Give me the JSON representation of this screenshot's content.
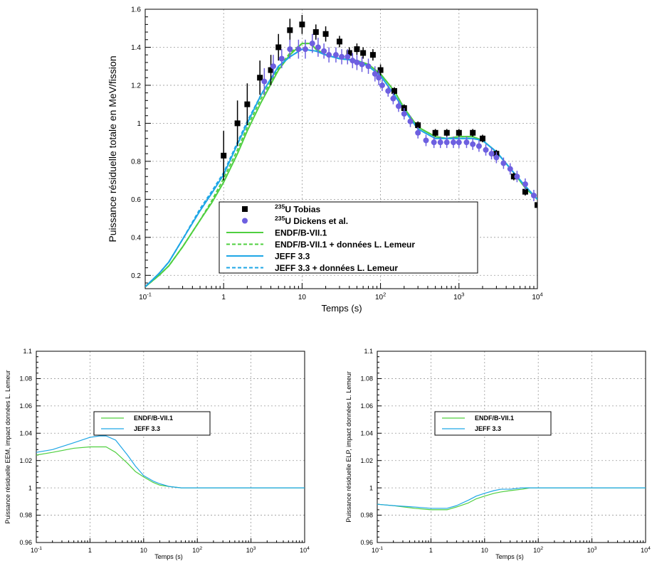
{
  "chart_data": [
    {
      "type": "scatter",
      "xlabel": "Temps (s)",
      "ylabel": "Puissance résiduelle totale en MeV/fission",
      "xscale": "log",
      "xlim": [
        0.1,
        10000
      ],
      "ylim": [
        0.13,
        1.6
      ],
      "grid": true,
      "legend_position": "bottom-center",
      "xticks": [
        {
          "base": "10",
          "exp": "-1",
          "v": 0.1
        },
        {
          "base": "1",
          "exp": "",
          "v": 1
        },
        {
          "base": "10",
          "exp": "",
          "v": 10
        },
        {
          "base": "10",
          "exp": "2",
          "v": 100
        },
        {
          "base": "10",
          "exp": "3",
          "v": 1000
        },
        {
          "base": "10",
          "exp": "4",
          "v": 10000
        }
      ],
      "yticks": [
        "0.2",
        "0.4",
        "0.6",
        "0.8",
        "1",
        "1.2",
        "1.4",
        "1.6"
      ],
      "legend": [
        {
          "sup": "235",
          "text": "U Tobias",
          "marker": "square",
          "color": "#000000"
        },
        {
          "sup": "235",
          "text": "U Dickens et al.",
          "marker": "circle",
          "color": "#6d5fe0"
        },
        {
          "sup": "",
          "text": "ENDF/B-VII.1",
          "marker": "line",
          "color": "#4fcf3f"
        },
        {
          "sup": "",
          "text": "ENDF/B-VII.1 + données L. Lemeur",
          "marker": "dashed",
          "color": "#4fcf3f"
        },
        {
          "sup": "",
          "text": "JEFF 3.3",
          "marker": "line",
          "color": "#1ea6e6"
        },
        {
          "sup": "",
          "text": "JEFF 3.3 + données L. Lemeur",
          "marker": "dashed",
          "color": "#1ea6e6"
        }
      ],
      "series": [
        {
          "name": "235U Tobias",
          "kind": "points",
          "marker": "square",
          "color": "#000000",
          "x": [
            1,
            1.5,
            2,
            2.9,
            4,
            5,
            7,
            10,
            15,
            20,
            30,
            40,
            50,
            60,
            80,
            100,
            150,
            200,
            300,
            500,
            700,
            1000,
            1500,
            2000,
            3000,
            5000,
            7000,
            10000
          ],
          "y": [
            0.83,
            1.0,
            1.1,
            1.24,
            1.28,
            1.4,
            1.49,
            1.52,
            1.48,
            1.47,
            1.43,
            1.37,
            1.39,
            1.37,
            1.36,
            1.28,
            1.17,
            1.08,
            0.99,
            0.95,
            0.95,
            0.95,
            0.95,
            0.92,
            0.84,
            0.72,
            0.64,
            0.57
          ],
          "err": [
            0.13,
            0.12,
            0.11,
            0.09,
            0.08,
            0.07,
            0.06,
            0.05,
            0.04,
            0.04,
            0.03,
            0.03,
            0.03,
            0.03,
            0.03,
            0.03,
            0.02,
            0.02,
            0.02,
            0.02,
            0.02,
            0.02,
            0.02,
            0.02,
            0.02,
            0.02,
            0.02,
            0.01
          ]
        },
        {
          "name": "235U Dickens et al.",
          "kind": "points",
          "marker": "circle",
          "color": "#6d5fe0",
          "x": [
            3.3,
            4.3,
            5.5,
            7,
            9,
            11,
            13.5,
            16,
            19,
            22,
            27,
            32,
            38,
            44,
            50,
            58,
            70,
            85,
            95,
            105,
            125,
            145,
            170,
            200,
            240,
            300,
            380,
            480,
            580,
            700,
            850,
            1000,
            1250,
            1500,
            1800,
            2200,
            2600,
            3000,
            3700,
            4500,
            5500,
            7000,
            9000
          ],
          "y": [
            1.22,
            1.3,
            1.34,
            1.39,
            1.39,
            1.39,
            1.42,
            1.4,
            1.38,
            1.36,
            1.36,
            1.35,
            1.35,
            1.33,
            1.32,
            1.31,
            1.3,
            1.26,
            1.24,
            1.2,
            1.17,
            1.13,
            1.09,
            1.05,
            1.01,
            0.95,
            0.91,
            0.9,
            0.9,
            0.9,
            0.9,
            0.9,
            0.9,
            0.89,
            0.88,
            0.86,
            0.84,
            0.82,
            0.79,
            0.76,
            0.72,
            0.68,
            0.62
          ],
          "err": [
            0.07,
            0.06,
            0.05,
            0.05,
            0.05,
            0.05,
            0.05,
            0.05,
            0.04,
            0.04,
            0.04,
            0.04,
            0.04,
            0.04,
            0.04,
            0.04,
            0.04,
            0.04,
            0.04,
            0.03,
            0.03,
            0.03,
            0.03,
            0.03,
            0.03,
            0.03,
            0.03,
            0.03,
            0.03,
            0.03,
            0.03,
            0.03,
            0.03,
            0.03,
            0.03,
            0.03,
            0.03,
            0.03,
            0.03,
            0.03,
            0.03,
            0.03,
            0.03
          ]
        },
        {
          "name": "ENDF/B-VII.1",
          "kind": "line",
          "style": "solid",
          "color": "#4fcf3f",
          "x": [
            0.1,
            0.15,
            0.2,
            0.3,
            0.5,
            0.7,
            1,
            1.5,
            2,
            3,
            5,
            7,
            10,
            13,
            15,
            20,
            30,
            50,
            70,
            100,
            150,
            200,
            300,
            500,
            700,
            1000,
            1500,
            2000,
            3000,
            5000,
            7000,
            10000
          ],
          "y": [
            0.14,
            0.2,
            0.25,
            0.35,
            0.49,
            0.58,
            0.69,
            0.84,
            0.96,
            1.11,
            1.28,
            1.36,
            1.42,
            1.42,
            1.39,
            1.36,
            1.34,
            1.33,
            1.31,
            1.26,
            1.17,
            1.08,
            0.98,
            0.93,
            0.92,
            0.93,
            0.93,
            0.91,
            0.85,
            0.74,
            0.66,
            0.6
          ]
        },
        {
          "name": "ENDF/B-VII.1 + données L. Lemeur",
          "kind": "line",
          "style": "dashed",
          "color": "#4fcf3f",
          "x": [
            0.1,
            0.15,
            0.2,
            0.3,
            0.5,
            0.7,
            1,
            1.5,
            2,
            3,
            5,
            7,
            10,
            13,
            15,
            20,
            30,
            50,
            70,
            100,
            150,
            200,
            300,
            500,
            700,
            1000,
            1500,
            2000,
            3000,
            5000,
            7000,
            10000
          ],
          "y": [
            0.14,
            0.2,
            0.25,
            0.35,
            0.49,
            0.59,
            0.71,
            0.86,
            0.98,
            1.13,
            1.29,
            1.37,
            1.42,
            1.42,
            1.39,
            1.36,
            1.34,
            1.33,
            1.31,
            1.26,
            1.17,
            1.08,
            0.98,
            0.93,
            0.92,
            0.93,
            0.93,
            0.91,
            0.85,
            0.74,
            0.66,
            0.6
          ]
        },
        {
          "name": "JEFF 3.3",
          "kind": "line",
          "style": "solid",
          "color": "#1ea6e6",
          "x": [
            0.1,
            0.15,
            0.2,
            0.3,
            0.5,
            0.7,
            1,
            1.5,
            2,
            3,
            5,
            7,
            10,
            15,
            20,
            30,
            50,
            70,
            100,
            150,
            200,
            300,
            500,
            700,
            1000,
            1500,
            2000,
            3000,
            5000,
            7000,
            10000
          ],
          "y": [
            0.14,
            0.21,
            0.27,
            0.39,
            0.54,
            0.63,
            0.73,
            0.89,
            1.0,
            1.15,
            1.3,
            1.35,
            1.39,
            1.38,
            1.36,
            1.34,
            1.33,
            1.3,
            1.25,
            1.15,
            1.07,
            0.97,
            0.92,
            0.92,
            0.92,
            0.92,
            0.91,
            0.85,
            0.74,
            0.67,
            0.6
          ]
        },
        {
          "name": "JEFF 3.3 + données L. Lemeur",
          "kind": "line",
          "style": "dashed",
          "color": "#1ea6e6",
          "x": [
            0.1,
            0.15,
            0.2,
            0.3,
            0.5,
            0.7,
            1,
            1.5,
            2,
            3,
            5,
            7,
            10,
            15,
            20,
            30,
            50,
            70,
            100,
            150,
            200,
            300,
            500,
            700,
            1000,
            1500,
            2000,
            3000,
            5000,
            7000,
            10000
          ],
          "y": [
            0.14,
            0.21,
            0.27,
            0.39,
            0.55,
            0.64,
            0.74,
            0.9,
            1.01,
            1.15,
            1.3,
            1.35,
            1.39,
            1.38,
            1.36,
            1.34,
            1.33,
            1.3,
            1.25,
            1.15,
            1.07,
            0.97,
            0.92,
            0.92,
            0.92,
            0.92,
            0.91,
            0.85,
            0.74,
            0.67,
            0.6
          ]
        }
      ]
    },
    {
      "type": "line",
      "xlabel": "Temps (s)",
      "ylabel": "Puissance résiduelle EEM, impact données L. Lemeur",
      "xscale": "log",
      "xlim": [
        0.1,
        10000
      ],
      "ylim": [
        0.96,
        1.1
      ],
      "grid": true,
      "legend_position": "middle-left",
      "xticks": [
        {
          "base": "10",
          "exp": "-1",
          "v": 0.1
        },
        {
          "base": "1",
          "exp": "",
          "v": 1
        },
        {
          "base": "10",
          "exp": "",
          "v": 10
        },
        {
          "base": "10",
          "exp": "2",
          "v": 100
        },
        {
          "base": "10",
          "exp": "3",
          "v": 1000
        },
        {
          "base": "10",
          "exp": "4",
          "v": 10000
        }
      ],
      "yticks": [
        "0.96",
        "0.98",
        "1",
        "1.02",
        "1.04",
        "1.06",
        "1.08",
        "1.1"
      ],
      "legend": [
        {
          "sup": "",
          "text": "ENDF/B-VII.1",
          "marker": "line",
          "color": "#4fcf3f"
        },
        {
          "sup": "",
          "text": "JEFF 3.3",
          "marker": "line",
          "color": "#1ea6e6"
        }
      ],
      "series": [
        {
          "name": "ENDF/B-VII.1",
          "kind": "line",
          "style": "solid",
          "color": "#4fcf3f",
          "x": [
            0.1,
            0.2,
            0.5,
            1,
            2,
            3,
            5,
            7,
            10,
            15,
            20,
            30,
            50,
            70,
            100,
            1000,
            10000
          ],
          "y": [
            1.024,
            1.026,
            1.029,
            1.03,
            1.03,
            1.026,
            1.018,
            1.012,
            1.008,
            1.004,
            1.002,
            1.001,
            1.0,
            1.0,
            1.0,
            1.0,
            1.0
          ]
        },
        {
          "name": "JEFF 3.3",
          "kind": "line",
          "style": "solid",
          "color": "#1ea6e6",
          "x": [
            0.1,
            0.2,
            0.5,
            1,
            1.5,
            2,
            3,
            5,
            7,
            10,
            15,
            20,
            30,
            50,
            70,
            100,
            1000,
            10000
          ],
          "y": [
            1.026,
            1.028,
            1.033,
            1.037,
            1.038,
            1.038,
            1.035,
            1.024,
            1.016,
            1.009,
            1.005,
            1.003,
            1.001,
            1.0,
            1.0,
            1.0,
            1.0,
            1.0
          ]
        }
      ]
    },
    {
      "type": "line",
      "xlabel": "Temps (s)",
      "ylabel": "Puissance résiduelle ELP, impact données L. Lemeur",
      "xscale": "log",
      "xlim": [
        0.1,
        10000
      ],
      "ylim": [
        0.96,
        1.1
      ],
      "grid": true,
      "legend_position": "middle-left",
      "xticks": [
        {
          "base": "10",
          "exp": "-1",
          "v": 0.1
        },
        {
          "base": "1",
          "exp": "",
          "v": 1
        },
        {
          "base": "10",
          "exp": "",
          "v": 10
        },
        {
          "base": "10",
          "exp": "2",
          "v": 100
        },
        {
          "base": "10",
          "exp": "3",
          "v": 1000
        },
        {
          "base": "10",
          "exp": "4",
          "v": 10000
        }
      ],
      "yticks": [
        "0.96",
        "0.98",
        "1",
        "1.02",
        "1.04",
        "1.06",
        "1.08",
        "1.1"
      ],
      "legend": [
        {
          "sup": "",
          "text": "ENDF/B-VII.1",
          "marker": "line",
          "color": "#4fcf3f"
        },
        {
          "sup": "",
          "text": "JEFF 3.3",
          "marker": "line",
          "color": "#1ea6e6"
        }
      ],
      "series": [
        {
          "name": "ENDF/B-VII.1",
          "kind": "line",
          "style": "solid",
          "color": "#4fcf3f",
          "x": [
            0.1,
            0.2,
            0.5,
            1,
            2,
            3,
            5,
            7,
            10,
            15,
            20,
            30,
            50,
            70,
            100,
            1000,
            10000
          ],
          "y": [
            0.988,
            0.987,
            0.985,
            0.984,
            0.984,
            0.986,
            0.989,
            0.992,
            0.994,
            0.996,
            0.997,
            0.998,
            0.999,
            1.0,
            1.0,
            1.0,
            1.0
          ]
        },
        {
          "name": "JEFF 3.3",
          "kind": "line",
          "style": "solid",
          "color": "#1ea6e6",
          "x": [
            0.1,
            0.2,
            0.5,
            1,
            2,
            3,
            5,
            7,
            10,
            15,
            20,
            30,
            50,
            70,
            100,
            1000,
            10000
          ],
          "y": [
            0.988,
            0.987,
            0.986,
            0.985,
            0.985,
            0.987,
            0.991,
            0.994,
            0.996,
            0.998,
            0.999,
            0.999,
            1.0,
            1.0,
            1.0,
            1.0,
            1.0
          ]
        }
      ]
    }
  ]
}
